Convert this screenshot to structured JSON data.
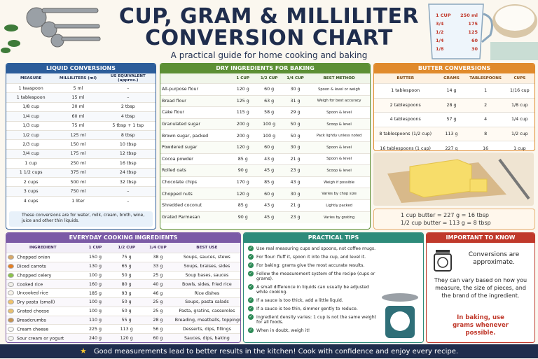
{
  "header": {
    "title_line1": "CUP, GRAM & MILLILITER",
    "title_line2": "CONVERSION CHART",
    "subtitle": "A practical guide for home cooking and baking"
  },
  "measuring_cup": {
    "left_marks": [
      "1 CUP",
      "3/4",
      "1/2",
      "1/4",
      "1/8"
    ],
    "right_marks": [
      "250 ml",
      "175",
      "125",
      "60",
      "30"
    ]
  },
  "liquid": {
    "title": "LIQUID CONVERSIONS",
    "columns": [
      "MEASURE",
      "MILLILITERS (ml)",
      "US EQUIVALENT (approx.)"
    ],
    "rows": [
      [
        "1 teaspoon",
        "5 ml",
        "–"
      ],
      [
        "1 tablespoon",
        "15 ml",
        "–"
      ],
      [
        "1/8 cup",
        "30 ml",
        "2 tbsp"
      ],
      [
        "1/4 cup",
        "60 ml",
        "4 tbsp"
      ],
      [
        "1/3 cup",
        "75 ml",
        "5 tbsp + 1 tsp"
      ],
      [
        "1/2 cup",
        "125 ml",
        "8 tbsp"
      ],
      [
        "2/3 cup",
        "150 ml",
        "10 tbsp"
      ],
      [
        "3/4 cup",
        "175 ml",
        "12 tbsp"
      ],
      [
        "1 cup",
        "250 ml",
        "16 tbsp"
      ],
      [
        "1 1/2 cups",
        "375 ml",
        "24 tbsp"
      ],
      [
        "2 cups",
        "500 ml",
        "32 tbsp"
      ],
      [
        "3 cups",
        "750 ml",
        "–"
      ],
      [
        "4 cups",
        "1 liter",
        "–"
      ]
    ],
    "note": "These conversions are for water, milk, cream, broth, wine, juice and other thin liquids."
  },
  "dry": {
    "title": "DRY INGREDIENTS FOR BAKING",
    "columns": [
      "1 CUP",
      "1/2 CUP",
      "1/4 CUP",
      "BEST METHOD"
    ],
    "rows": [
      [
        "All-purpose flour",
        "120 g",
        "60 g",
        "30 g",
        "Spoon & level or weigh"
      ],
      [
        "Bread flour",
        "125 g",
        "63 g",
        "31 g",
        "Weigh for best accuracy"
      ],
      [
        "Cake flour",
        "115 g",
        "58 g",
        "29 g",
        "Spoon & level"
      ],
      [
        "Granulated sugar",
        "200 g",
        "100 g",
        "50 g",
        "Scoop & level"
      ],
      [
        "Brown sugar, packed",
        "200 g",
        "100 g",
        "50 g",
        "Pack lightly unless noted"
      ],
      [
        "Powdered sugar",
        "120 g",
        "60 g",
        "30 g",
        "Spoon & level"
      ],
      [
        "Cocoa powder",
        "85 g",
        "43 g",
        "21 g",
        "Spoon & level"
      ],
      [
        "Rolled oats",
        "90 g",
        "45 g",
        "23 g",
        "Scoop & level"
      ],
      [
        "Chocolate chips",
        "170 g",
        "85 g",
        "43 g",
        "Weigh if possible"
      ],
      [
        "Chopped nuts",
        "120 g",
        "60 g",
        "30 g",
        "Varies by chop size"
      ],
      [
        "Shredded coconut",
        "85 g",
        "43 g",
        "21 g",
        "Lightly packed"
      ],
      [
        "Grated Parmesan",
        "90 g",
        "45 g",
        "23 g",
        "Varies by grating"
      ]
    ]
  },
  "butter": {
    "title": "BUTTER CONVERSIONS",
    "columns": [
      "BUTTER",
      "GRAMS",
      "TABLESPOONS",
      "CUPS"
    ],
    "rows": [
      [
        "1 tablespoon",
        "14 g",
        "1",
        "1/16 cup"
      ],
      [
        "2 tablespoons",
        "28 g",
        "2",
        "1/8 cup"
      ],
      [
        "4 tablespoons",
        "57 g",
        "4",
        "1/4 cup"
      ],
      [
        "8 tablespoons (1/2 cup)",
        "113 g",
        "8",
        "1/2 cup"
      ],
      [
        "16 tablespoons (1 cup)",
        "227 g",
        "16",
        "1 cup"
      ]
    ],
    "note_lines": [
      "1 cup butter  =  227 g  =  16 tbsp",
      "1/2 cup butter  =  113 g  =  8 tbsp"
    ]
  },
  "everyday": {
    "title": "EVERYDAY COOKING INGREDIENTS",
    "columns": [
      "INGREDIENT",
      "1 CUP",
      "1/2 CUP",
      "1/4 CUP",
      "BEST USE"
    ],
    "rows": [
      [
        "Chopped onion",
        "150 g",
        "75 g",
        "38 g",
        "Soups, sauces, stews"
      ],
      [
        "Diced carrots",
        "130 g",
        "65 g",
        "33 g",
        "Soups, braises, sides"
      ],
      [
        "Chopped celery",
        "100 g",
        "50 g",
        "25 g",
        "Soup bases, sauces"
      ],
      [
        "Cooked rice",
        "160 g",
        "80 g",
        "40 g",
        "Bowls, sides, fried rice"
      ],
      [
        "Uncooked rice",
        "185 g",
        "93 g",
        "46 g",
        "Rice dishes"
      ],
      [
        "Dry pasta (small)",
        "100 g",
        "50 g",
        "25 g",
        "Soups, pasta salads"
      ],
      [
        "Grated cheese",
        "100 g",
        "50 g",
        "25 g",
        "Pasta, gratins, casseroles"
      ],
      [
        "Breadcrumbs",
        "110 g",
        "55 g",
        "28 g",
        "Breading, meatballs, toppings"
      ],
      [
        "Cream cheese",
        "225 g",
        "113 g",
        "56 g",
        "Desserts, dips, fillings"
      ],
      [
        "Sour cream or yogurt",
        "240 g",
        "120 g",
        "60 g",
        "Sauces, dips, baking"
      ]
    ]
  },
  "tips": {
    "title": "PRACTICAL TIPS",
    "items": [
      "Use real measuring cups and spoons, not coffee mugs.",
      "For flour: fluff it, spoon it into the cup, and level it.",
      "For baking: grams give the most accurate results.",
      "Follow the measurement system of the recipe (cups or grams).",
      "A small difference in liquids can usually be adjusted while cooking.",
      "If a sauce is too thick, add a little liquid.",
      "If a sauce is too thin, simmer gently to reduce.",
      "Ingredient density varies: 1 cup is not the same weight for all foods.",
      "When in doubt, weigh it!"
    ]
  },
  "important": {
    "title": "IMPORTANT TO KNOW",
    "lead": "Conversions are approximate.",
    "body": "They can vary based on how you measure, the size of pieces, and the brand of the ingredient.",
    "emphasis": "In baking, use grams whenever possible."
  },
  "footer": {
    "text": "Good measurements lead to better results in the kitchen!  Cook with confidence and enjoy every recipe."
  }
}
